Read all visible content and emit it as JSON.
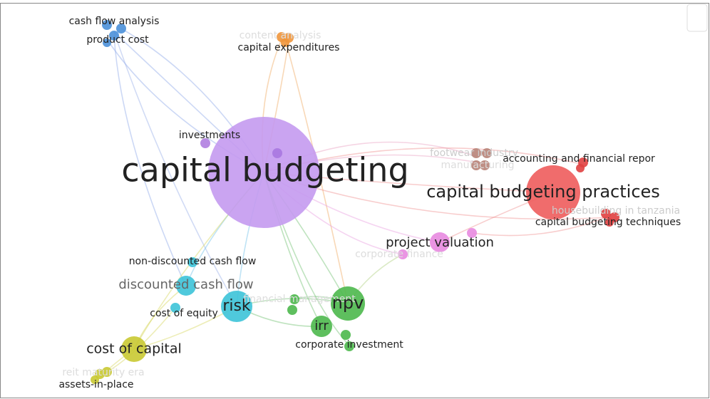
{
  "nodes": [
    {
      "label": "capital budgeting"
    },
    {
      "label": "capital budgeting practices"
    },
    {
      "label": "cash flow analysis"
    },
    {
      "label": "product cost"
    },
    {
      "label": "content analysis"
    },
    {
      "label": "capital expenditures"
    },
    {
      "label": "investments"
    },
    {
      "label": "footwear industry"
    },
    {
      "label": "manufacturing"
    },
    {
      "label": "accounting and financial repor"
    },
    {
      "label": "housebuilding in tanzania"
    },
    {
      "label": "capital budgeting techniques"
    },
    {
      "label": "project valuation"
    },
    {
      "label": "corporate finance"
    },
    {
      "label": "non-discounted cash flow"
    },
    {
      "label": "discounted cash flow"
    },
    {
      "label": "risk"
    },
    {
      "label": "cost of equity"
    },
    {
      "label": "financial management"
    },
    {
      "label": "npv"
    },
    {
      "label": "irr"
    },
    {
      "label": "corporate investment"
    },
    {
      "label": "cost of capital"
    },
    {
      "label": "reit maturity era"
    },
    {
      "label": "assets-in-place"
    }
  ]
}
